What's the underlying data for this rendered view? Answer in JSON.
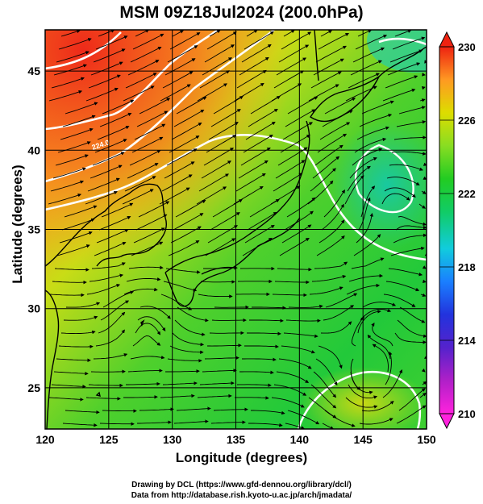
{
  "title": "MSM 09Z18Jul2024 (200.0hPa)",
  "xlabel": "Longitude (degrees)",
  "ylabel": "Latitude  (degrees)",
  "credits": {
    "line1": "Drawing by DCL (https://www.gfd-dennou.org/library/dcl/)",
    "line2": "Data from http://database.rish.kyoto-u.ac.jp/arch/jmadata/"
  },
  "chart_data": {
    "type": "heatmap",
    "xlim": [
      120,
      150
    ],
    "ylim": [
      22.4,
      47.6
    ],
    "xticks": [
      "120",
      "125",
      "130",
      "135",
      "140",
      "145",
      "150"
    ],
    "yticks": [
      "25",
      "30",
      "35",
      "40",
      "45"
    ],
    "grid": true,
    "contour_label": "224.0",
    "colorbar": {
      "min": 210,
      "max": 230,
      "ticks": [
        "210",
        "214",
        "218",
        "222",
        "226",
        "230"
      ],
      "colors": [
        "#ff22dd",
        "#a020c0",
        "#2222dd",
        "#1a7fff",
        "#11ccdd",
        "#11cc66",
        "#22cc22",
        "#77dd22",
        "#ccdd00",
        "#ffaa00",
        "#ff5522",
        "#ee2211"
      ]
    }
  },
  "colors": {
    "coast": "#000000",
    "streamline": "#000000",
    "contour": "#ffffff"
  }
}
